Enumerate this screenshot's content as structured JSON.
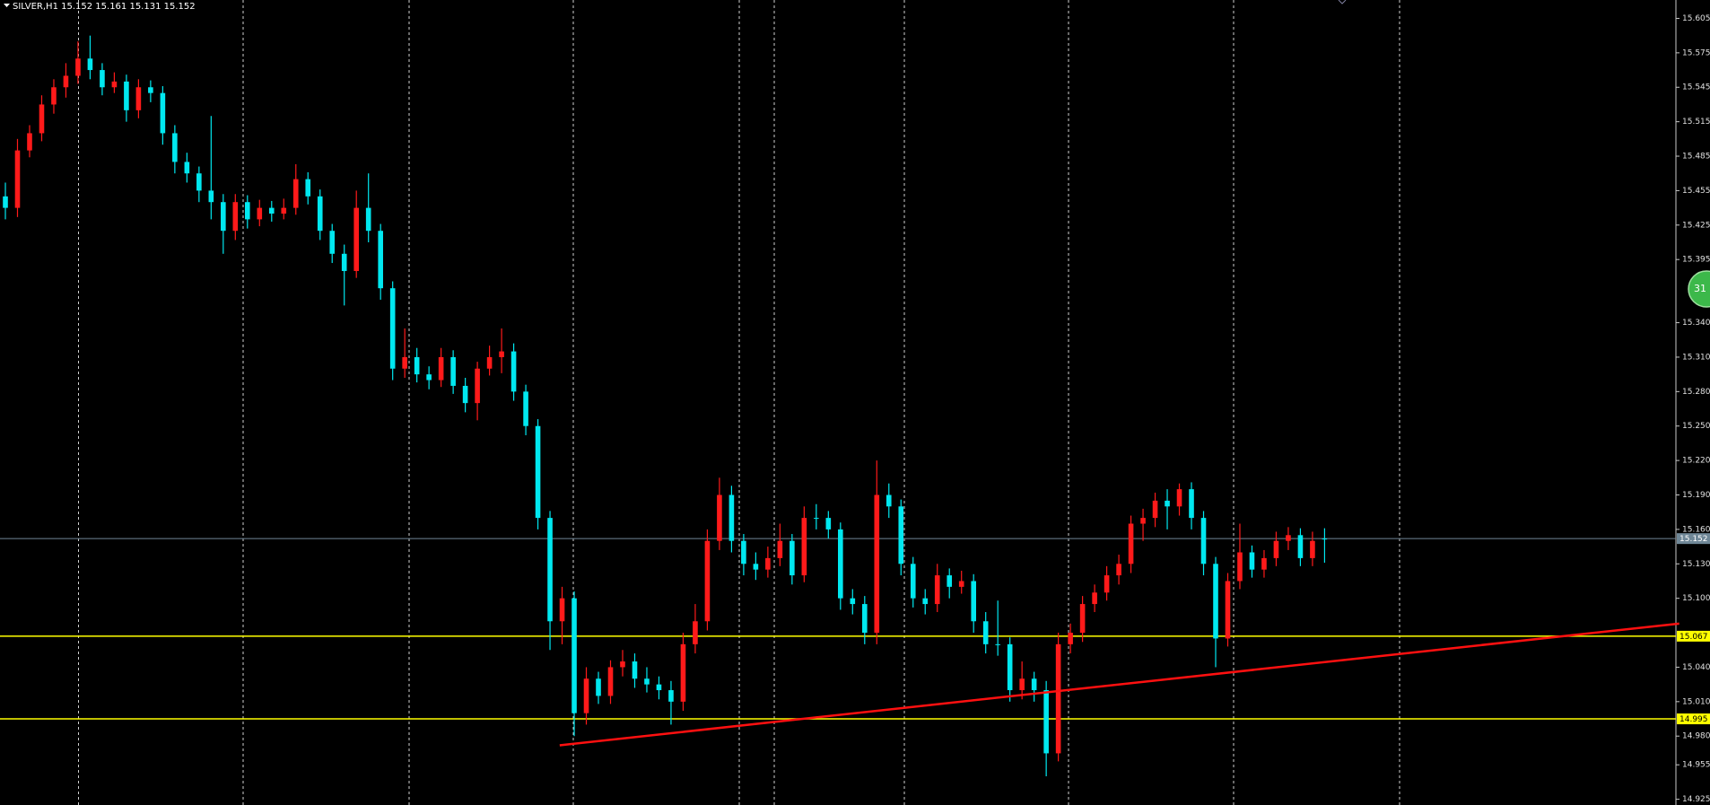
{
  "chart_data": {
    "type": "candlestick",
    "title": "SILVER,H1  15.152 15.161 15.131 15.152",
    "ylim": [
      14.92,
      15.621
    ],
    "yticks": [
      15.605,
      15.575,
      15.545,
      15.515,
      15.485,
      15.455,
      15.425,
      15.395,
      {
        "value": 15.34,
        "label": "15.340"
      },
      {
        "value": 15.31,
        "label": "15.310"
      },
      {
        "value": 15.28,
        "label": "15.280"
      },
      {
        "value": 15.25,
        "label": "15.250"
      },
      {
        "value": 15.22,
        "label": "15.220"
      },
      {
        "value": 15.19,
        "label": "15.190"
      },
      {
        "value": 15.16,
        "label": "15.160"
      },
      {
        "value": 15.13,
        "label": "15.130"
      },
      {
        "value": 15.1,
        "label": "15.100"
      },
      {
        "value": 15.04,
        "label": "15.040"
      },
      {
        "value": 15.01,
        "label": "15.010"
      },
      {
        "value": 14.98,
        "label": "14.980"
      },
      14.955,
      14.925
    ],
    "up_color": "#ff1a1a",
    "down_color": "#00e8f0",
    "levels": [
      {
        "price": 15.152,
        "color": "#6f8797",
        "label_color": "#ffffff"
      },
      {
        "price": 15.067,
        "color": "#ffff00",
        "label_color": "#000000"
      },
      {
        "price": 14.995,
        "color": "#ffff00",
        "label_color": "#000000"
      }
    ],
    "trendline": {
      "x": [
        45.8,
        138.3
      ],
      "y": [
        14.972,
        15.078
      ],
      "color": "#ff1010"
    },
    "badge": "31",
    "candles": [
      [
        15.45,
        15.462,
        15.43,
        15.44
      ],
      [
        15.44,
        15.5,
        15.432,
        15.49
      ],
      [
        15.49,
        15.512,
        15.484,
        15.505
      ],
      [
        15.505,
        15.538,
        15.498,
        15.53
      ],
      [
        15.53,
        15.552,
        15.522,
        15.545
      ],
      [
        15.545,
        15.566,
        15.536,
        15.555
      ],
      [
        15.555,
        15.585,
        15.548,
        15.57
      ],
      [
        15.57,
        15.59,
        15.552,
        15.56
      ],
      [
        15.56,
        15.566,
        15.538,
        15.545
      ],
      [
        15.545,
        15.558,
        15.54,
        15.55
      ],
      [
        15.55,
        15.556,
        15.515,
        15.525
      ],
      [
        15.525,
        15.552,
        15.518,
        15.545
      ],
      [
        15.545,
        15.551,
        15.532,
        15.54
      ],
      [
        15.54,
        15.546,
        15.495,
        15.505
      ],
      [
        15.505,
        15.512,
        15.47,
        15.48
      ],
      [
        15.48,
        15.488,
        15.462,
        15.47
      ],
      [
        15.47,
        15.476,
        15.445,
        15.455
      ],
      [
        15.455,
        15.52,
        15.43,
        15.445
      ],
      [
        15.445,
        15.452,
        15.4,
        15.42
      ],
      [
        15.42,
        15.452,
        15.412,
        15.445
      ],
      [
        15.445,
        15.451,
        15.422,
        15.43
      ],
      [
        15.43,
        15.447,
        15.424,
        15.44
      ],
      [
        15.44,
        15.446,
        15.428,
        15.435
      ],
      [
        15.435,
        15.448,
        15.43,
        15.44
      ],
      [
        15.44,
        15.478,
        15.434,
        15.465
      ],
      [
        15.465,
        15.471,
        15.443,
        15.45
      ],
      [
        15.45,
        15.456,
        15.412,
        15.42
      ],
      [
        15.42,
        15.426,
        15.392,
        15.4
      ],
      [
        15.4,
        15.408,
        15.355,
        15.385
      ],
      [
        15.385,
        15.455,
        15.379,
        15.44
      ],
      [
        15.44,
        15.47,
        15.41,
        15.42
      ],
      [
        15.42,
        15.426,
        15.36,
        15.37
      ],
      [
        15.37,
        15.376,
        15.29,
        15.3
      ],
      [
        15.3,
        15.335,
        15.292,
        15.31
      ],
      [
        15.31,
        15.318,
        15.288,
        15.295
      ],
      [
        15.295,
        15.302,
        15.282,
        15.29
      ],
      [
        15.29,
        15.318,
        15.284,
        15.31
      ],
      [
        15.31,
        15.316,
        15.278,
        15.285
      ],
      [
        15.285,
        15.292,
        15.262,
        15.27
      ],
      [
        15.27,
        15.306,
        15.255,
        15.3
      ],
      [
        15.3,
        15.32,
        15.294,
        15.31
      ],
      [
        15.31,
        15.335,
        15.296,
        15.315
      ],
      [
        15.315,
        15.322,
        15.272,
        15.28
      ],
      [
        15.28,
        15.286,
        15.242,
        15.25
      ],
      [
        15.25,
        15.256,
        15.16,
        15.17
      ],
      [
        15.17,
        15.176,
        15.055,
        15.08
      ],
      [
        15.08,
        15.11,
        15.06,
        15.1
      ],
      [
        15.1,
        15.106,
        14.98,
        15.0
      ],
      [
        15.0,
        15.04,
        14.99,
        15.03
      ],
      [
        15.03,
        15.036,
        15.008,
        15.015
      ],
      [
        15.015,
        15.046,
        15.008,
        15.04
      ],
      [
        15.04,
        15.055,
        15.032,
        15.045
      ],
      [
        15.045,
        15.052,
        15.022,
        15.03
      ],
      [
        15.03,
        15.04,
        15.018,
        15.025
      ],
      [
        15.025,
        15.032,
        15.012,
        15.02
      ],
      [
        15.02,
        15.028,
        14.99,
        15.01
      ],
      [
        15.01,
        15.07,
        15.002,
        15.06
      ],
      [
        15.06,
        15.095,
        15.052,
        15.08
      ],
      [
        15.08,
        15.16,
        15.072,
        15.15
      ],
      [
        15.15,
        15.205,
        15.142,
        15.19
      ],
      [
        15.19,
        15.198,
        15.14,
        15.15
      ],
      [
        15.15,
        15.156,
        15.12,
        15.13
      ],
      [
        15.13,
        15.14,
        15.116,
        15.125
      ],
      [
        15.125,
        15.145,
        15.118,
        15.135
      ],
      [
        15.135,
        15.165,
        15.128,
        15.15
      ],
      [
        15.15,
        15.156,
        15.112,
        15.12
      ],
      [
        15.12,
        15.18,
        15.114,
        15.17
      ],
      [
        15.17,
        15.182,
        15.16,
        15.17
      ],
      [
        15.17,
        15.176,
        15.152,
        15.16
      ],
      [
        15.16,
        15.166,
        15.09,
        15.1
      ],
      [
        15.1,
        15.108,
        15.086,
        15.095
      ],
      [
        15.095,
        15.102,
        15.06,
        15.07
      ],
      [
        15.07,
        15.22,
        15.06,
        15.19
      ],
      [
        15.19,
        15.2,
        15.17,
        15.18
      ],
      [
        15.18,
        15.186,
        15.12,
        15.13
      ],
      [
        15.13,
        15.136,
        15.092,
        15.1
      ],
      [
        15.1,
        15.108,
        15.086,
        15.095
      ],
      [
        15.095,
        15.13,
        15.088,
        15.12
      ],
      [
        15.12,
        15.126,
        15.1,
        15.11
      ],
      [
        15.11,
        15.124,
        15.104,
        15.115
      ],
      [
        15.115,
        15.121,
        15.07,
        15.08
      ],
      [
        15.08,
        15.088,
        15.052,
        15.06
      ],
      [
        15.06,
        15.098,
        15.05,
        15.06
      ],
      [
        15.06,
        15.066,
        15.01,
        15.02
      ],
      [
        15.02,
        15.045,
        15.012,
        15.03
      ],
      [
        15.03,
        15.036,
        15.01,
        15.02
      ],
      [
        15.02,
        15.028,
        14.945,
        14.965
      ],
      [
        14.965,
        15.07,
        14.958,
        15.06
      ],
      [
        15.06,
        15.078,
        15.052,
        15.07
      ],
      [
        15.07,
        15.102,
        15.062,
        15.095
      ],
      [
        15.095,
        15.112,
        15.088,
        15.105
      ],
      [
        15.105,
        15.128,
        15.098,
        15.12
      ],
      [
        15.12,
        15.138,
        15.112,
        15.13
      ],
      [
        15.13,
        15.172,
        15.122,
        15.165
      ],
      [
        15.165,
        15.178,
        15.15,
        15.17
      ],
      [
        15.17,
        15.192,
        15.162,
        15.185
      ],
      [
        15.185,
        15.195,
        15.16,
        15.18
      ],
      [
        15.18,
        15.2,
        15.172,
        15.195
      ],
      [
        15.195,
        15.201,
        15.16,
        15.17
      ],
      [
        15.17,
        15.176,
        15.12,
        15.13
      ],
      [
        15.13,
        15.136,
        15.04,
        15.065
      ],
      [
        15.065,
        15.122,
        15.058,
        15.115
      ],
      [
        15.115,
        15.165,
        15.108,
        15.14
      ],
      [
        15.14,
        15.146,
        15.118,
        15.125
      ],
      [
        15.125,
        15.142,
        15.118,
        15.135
      ],
      [
        15.135,
        15.158,
        15.128,
        15.15
      ],
      [
        15.15,
        15.162,
        15.142,
        15.155
      ],
      [
        15.155,
        15.161,
        15.128,
        15.135
      ],
      [
        15.135,
        15.158,
        15.128,
        15.15
      ],
      [
        15.152,
        15.161,
        15.131,
        15.152
      ]
    ]
  }
}
